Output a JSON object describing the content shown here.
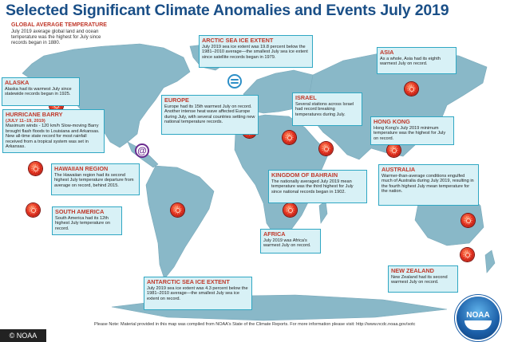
{
  "title": "Selected Significant Climate Anomalies and Events July 2019",
  "global": {
    "head": "GLOBAL AVERAGE TEMPERATURE",
    "body": "July 2019 average global land and ocean temperature was the highest for July since records began in 1880."
  },
  "regions": {
    "arctic": {
      "head": "ARCTIC SEA ICE EXTENT",
      "body": "July 2019 sea ice extent was 19.8 percent below the 1981–2010 average—the smallest July sea ice extent since satellite records began in 1979."
    },
    "asia": {
      "head": "ASIA",
      "body": "As a whole, Asia had its eighth warmest July on record."
    },
    "alaska": {
      "head": "ALASKA",
      "body": "Alaska had its warmest July since statewide records began in 1925."
    },
    "europe": {
      "head": "EUROPE",
      "body": "Europe had its 15th warmest July on record. Another intense heat wave affected Europe during July, with several countries setting new national temperature records."
    },
    "israel": {
      "head": "ISRAEL",
      "body": "Several stations across Israel had record breaking temperatures during July."
    },
    "barry": {
      "head": "HURRICANE BARRY",
      "subhead": "(JULY 11–19, 2019)",
      "body": "Maximum winds - 120 km/h Slow-moving Barry brought flash floods to Louisiana and Arkansas. New all-time state record for most rainfall received from a tropical system was set in Arkansas."
    },
    "hongkong": {
      "head": "HONG KONG",
      "body": "Hong Kong's July 2019 minimum temperature was the highest for July on record."
    },
    "hawaii": {
      "head": "HAWAIIAN REGION",
      "body": "The Hawaiian region had its second highest July temperature departure from average on record, behind 2015."
    },
    "bahrain": {
      "head": "KINGDOM OF BAHRAIN",
      "body": "The nationally averaged July 2019 mean temperature was the third highest for July since national records began in 1902."
    },
    "australia": {
      "head": "AUSTRALIA",
      "body": "Warmer-than-average conditions engulfed much of Australia during July 2019, resulting in the fourth highest July mean temperature for the nation."
    },
    "southamerica": {
      "head": "SOUTH AMERICA",
      "body": "South America had its 12th highest July temperature on record."
    },
    "africa": {
      "head": "AFRICA",
      "body": "July 2019 was Africa's warmest July on record."
    },
    "newzealand": {
      "head": "NEW ZEALAND",
      "body": "New Zealand had its second warmest July on record."
    },
    "antarctic": {
      "head": "ANTARCTIC SEA ICE EXTENT",
      "body": "July 2019 sea ice extent was 4.3 percent below the 1981–2010 average—the smallest July sea ice extent on record."
    }
  },
  "footer": {
    "note": "Please Note: Material provided in this map was compiled from NOAA's State of the Climate Reports. For more information please visit: http://www.ncdc.noaa.gov/sotc",
    "credit": "© NOAA",
    "logo": "NOAA"
  },
  "colors": {
    "title": "#1a4f87",
    "heading": "#c0392b",
    "box_fill": "#d8f1f6",
    "box_border": "#30a7c3",
    "land": "#89b8c8",
    "ocean": "#ffffff",
    "heat_marker": "#e5321f",
    "ice_marker": "#2d8fc7",
    "hurricane_marker": "#6a2b8f"
  },
  "icons": {
    "heat": "thermometer-heat-icon",
    "ice": "sea-ice-icon",
    "hurricane": "hurricane-icon"
  }
}
